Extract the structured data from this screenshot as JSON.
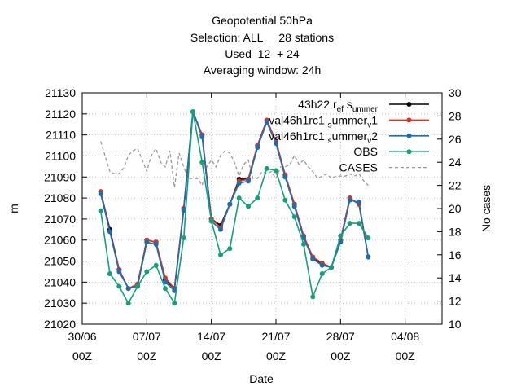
{
  "chart_data": {
    "type": "line",
    "title_lines": [
      "Geopotential 50hPa",
      "Selection: ALL     28 stations",
      "Used  12  + 24",
      "Averaging window: 24h"
    ],
    "xlabel": "Date",
    "ylabel": "m",
    "y2label": "No cases",
    "xlim": [
      0,
      39
    ],
    "ylim": [
      21020,
      21130
    ],
    "y2lim": [
      10,
      30
    ],
    "grid": true,
    "legend_position": "top-right",
    "x_ticks": [
      {
        "x": 0,
        "line1": "30/06",
        "line2": "00Z"
      },
      {
        "x": 7,
        "line1": "07/07",
        "line2": "00Z"
      },
      {
        "x": 14,
        "line1": "14/07",
        "line2": "00Z"
      },
      {
        "x": 21,
        "line1": "21/07",
        "line2": "00Z"
      },
      {
        "x": 28,
        "line1": "28/07",
        "line2": "00Z"
      },
      {
        "x": 35,
        "line1": "04/08",
        "line2": "00Z"
      }
    ],
    "y_ticks": [
      21020,
      21030,
      21040,
      21050,
      21060,
      21070,
      21080,
      21090,
      21100,
      21110,
      21120,
      21130
    ],
    "y2_ticks": [
      10,
      12,
      14,
      16,
      18,
      20,
      22,
      24,
      26,
      28,
      30
    ],
    "series": [
      {
        "name": "43h22 ref_summer",
        "legend_parts": [
          {
            "t": "43h22 r"
          },
          {
            "t": "ef",
            "sub": true
          },
          {
            "t": " s"
          },
          {
            "t": "ummer",
            "sub": true
          }
        ],
        "color": "#000000",
        "x": [
          2,
          3,
          4,
          5,
          6,
          7,
          8,
          9,
          10,
          11,
          12,
          13,
          14,
          15,
          16,
          17,
          18,
          19,
          20,
          21,
          22,
          23,
          24,
          25,
          26,
          27,
          28,
          29,
          30,
          31,
          32
        ],
        "values": [
          21083,
          21065,
          21046,
          21037,
          21039,
          21060,
          21059,
          21041,
          21037,
          21075,
          21121,
          21110,
          21070,
          21067,
          21077,
          21089,
          21089,
          21105,
          21117,
          21107,
          21091,
          21077,
          21062,
          21051,
          21049,
          21047,
          21060,
          21080,
          21077,
          21052,
          null
        ]
      },
      {
        "name": "val46h1rc1_summer_v1",
        "legend_parts": [
          {
            "t": "val46h1rc1 "
          },
          {
            "t": "s",
            "sub": true
          },
          {
            "t": "ummer"
          },
          {
            "t": "v",
            "sub": true
          },
          {
            "t": "1"
          }
        ],
        "color": "#e03020",
        "x": [
          2,
          3,
          4,
          5,
          6,
          7,
          8,
          9,
          10,
          11,
          12,
          13,
          14,
          15,
          16,
          17,
          18,
          19,
          20,
          21,
          22,
          23,
          24,
          25,
          26,
          27,
          28,
          29,
          30,
          31
        ],
        "values": [
          21083,
          21064,
          21046,
          21037,
          21039,
          21060,
          21059,
          21042,
          21037,
          21075,
          21121,
          21110,
          21070,
          21066,
          21077,
          21088,
          21089,
          21105,
          21117,
          21107,
          21091,
          21077,
          21062,
          21052,
          21049,
          21047,
          21060,
          21080,
          21077,
          21052
        ]
      },
      {
        "name": "val46h1rc1_summer_v2",
        "legend_parts": [
          {
            "t": "val46h1rc1 "
          },
          {
            "t": "s",
            "sub": true
          },
          {
            "t": "ummer"
          },
          {
            "t": "v",
            "sub": true
          },
          {
            "t": "2"
          }
        ],
        "color": "#1a6fb0",
        "x": [
          2,
          3,
          4,
          5,
          6,
          7,
          8,
          9,
          10,
          11,
          12,
          13,
          14,
          15,
          16,
          17,
          18,
          19,
          20,
          21,
          22,
          23,
          24,
          25,
          26,
          27,
          28,
          29,
          30,
          31
        ],
        "values": [
          21082,
          21064,
          21045,
          21037,
          21038,
          21059,
          21058,
          21040,
          21036,
          21074,
          21121,
          21109,
          21069,
          21065,
          21077,
          21087,
          21088,
          21104,
          21116,
          21106,
          21090,
          21076,
          21061,
          21051,
          21048,
          21047,
          21059,
          21079,
          21078,
          21052
        ]
      },
      {
        "name": "OBS",
        "legend_parts": [
          {
            "t": "OBS"
          }
        ],
        "color": "#14a078",
        "x": [
          2,
          3,
          4,
          5,
          6,
          7,
          8,
          9,
          10,
          11,
          12,
          13,
          14,
          15,
          16,
          17,
          18,
          19,
          20,
          21,
          22,
          23,
          24,
          25,
          26,
          27,
          28,
          29,
          30,
          31
        ],
        "values": [
          21074,
          21044,
          21038,
          21030,
          21038,
          21045,
          21048,
          21037,
          21030,
          21061,
          21121,
          21097,
          21069,
          21053,
          21056,
          21080,
          21076,
          21080,
          21094,
          21093,
          21079,
          21071,
          21058,
          21033,
          21044,
          21047,
          21062,
          21068,
          21068,
          21061
        ]
      },
      {
        "name": "CASES",
        "legend_parts": [
          {
            "t": "CASES"
          }
        ],
        "color": "#999999",
        "axis": "y2",
        "dashed": true,
        "x": [
          2,
          2.5,
          3,
          3.5,
          4,
          4.5,
          5,
          5.5,
          6,
          6.5,
          7,
          7.5,
          8,
          8.5,
          9,
          9.5,
          10,
          10.5,
          11,
          11.5,
          12,
          12.5,
          13,
          13.5,
          14,
          14.5,
          15,
          15.5,
          16,
          16.5,
          17,
          17.5,
          18,
          18.5,
          19,
          19.5,
          20,
          20.5,
          21,
          21.5,
          22,
          22.5,
          23,
          23.5,
          24,
          24.5,
          25,
          25.5,
          26,
          26.5,
          27,
          27.5,
          28,
          28.5,
          29,
          29.5,
          30,
          30.5,
          31
        ],
        "values": [
          25.8,
          24.5,
          23.2,
          23.0,
          23.0,
          23.5,
          24.6,
          25.0,
          25.2,
          24.2,
          23.2,
          24.6,
          25.2,
          24.0,
          23.6,
          25.0,
          21.8,
          24.8,
          23.6,
          22.6,
          22.6,
          22.6,
          22.0,
          23.6,
          24.2,
          23.6,
          24.6,
          25.0,
          24.8,
          24.0,
          22.8,
          23.8,
          24.2,
          22.6,
          22.6,
          23.2,
          23.0,
          23.2,
          22.6,
          23.6,
          23.6,
          23.8,
          24.6,
          23.8,
          24.2,
          23.6,
          23.2,
          22.6,
          22.8,
          23.0,
          22.6,
          22.8,
          22.8,
          22.8,
          23.0,
          22.8,
          23.0,
          22.4,
          22.0
        ]
      }
    ]
  }
}
